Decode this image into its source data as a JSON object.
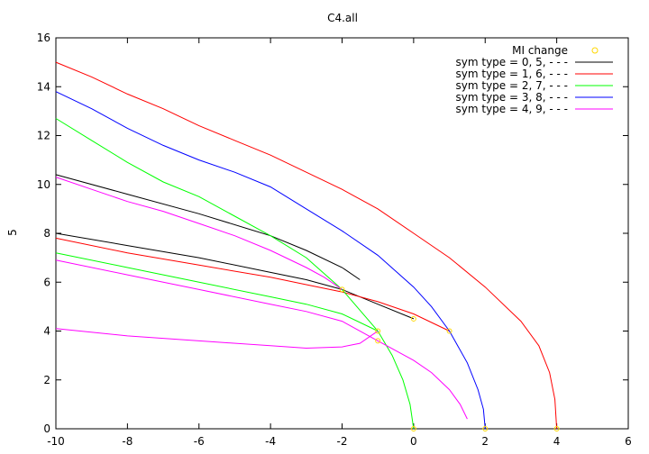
{
  "chart_data": {
    "type": "line",
    "title": "C4.all",
    "xlabel": "",
    "ylabel": "5",
    "xlim": [
      -10,
      6
    ],
    "ylim": [
      0,
      16
    ],
    "x_ticks": [
      -10,
      -8,
      -6,
      -4,
      -2,
      0,
      2,
      4,
      6
    ],
    "y_ticks": [
      0,
      2,
      4,
      6,
      8,
      10,
      12,
      14,
      16
    ],
    "grid": false,
    "legend_position": "top-right",
    "markers": {
      "name": "MI change",
      "color": "#ffd700",
      "points": [
        [
          0,
          0
        ],
        [
          2,
          0
        ],
        [
          4,
          0
        ],
        [
          -2,
          5.7
        ],
        [
          -1,
          4.0
        ],
        [
          0,
          4.5
        ],
        [
          1,
          4.0
        ],
        [
          -1,
          3.6
        ]
      ]
    },
    "series": [
      {
        "name": "sym type = 0, 5, - - -",
        "color": "#000000",
        "lines": [
          [
            [
              -10,
              10.4
            ],
            [
              -8,
              9.6
            ],
            [
              -6,
              8.8
            ],
            [
              -4,
              7.9
            ],
            [
              -3,
              7.3
            ],
            [
              -2,
              6.6
            ],
            [
              -1.5,
              6.1
            ]
          ],
          [
            [
              -10,
              8.0
            ],
            [
              -8,
              7.5
            ],
            [
              -6,
              7.0
            ],
            [
              -4,
              6.4
            ],
            [
              -3,
              6.1
            ],
            [
              -2,
              5.7
            ],
            [
              -1,
              5.1
            ],
            [
              0,
              4.5
            ]
          ]
        ]
      },
      {
        "name": "sym type = 1, 6, - - -",
        "color": "#ff0000",
        "lines": [
          [
            [
              -10,
              15.0
            ],
            [
              -9,
              14.4
            ],
            [
              -8,
              13.7
            ],
            [
              -7,
              13.1
            ],
            [
              -6,
              12.4
            ],
            [
              -5,
              11.8
            ],
            [
              -4,
              11.2
            ],
            [
              -3,
              10.5
            ],
            [
              -2,
              9.8
            ],
            [
              -1,
              9.0
            ],
            [
              0,
              8.0
            ],
            [
              1,
              7.0
            ],
            [
              2,
              5.8
            ],
            [
              3,
              4.4
            ],
            [
              3.5,
              3.4
            ],
            [
              3.8,
              2.3
            ],
            [
              3.95,
              1.2
            ],
            [
              4,
              0
            ]
          ],
          [
            [
              -10,
              7.8
            ],
            [
              -8,
              7.2
            ],
            [
              -6,
              6.7
            ],
            [
              -4,
              6.2
            ],
            [
              -3,
              5.9
            ],
            [
              -2,
              5.6
            ],
            [
              -1,
              5.2
            ],
            [
              0,
              4.7
            ],
            [
              1,
              4.0
            ]
          ]
        ]
      },
      {
        "name": "sym type = 2, 7, - - -",
        "color": "#00ff00",
        "lines": [
          [
            [
              -10,
              12.7
            ],
            [
              -9,
              11.8
            ],
            [
              -8,
              10.9
            ],
            [
              -7,
              10.1
            ],
            [
              -6,
              9.5
            ],
            [
              -5,
              8.7
            ],
            [
              -4,
              7.9
            ],
            [
              -3,
              7.0
            ],
            [
              -2,
              5.7
            ],
            [
              -1,
              4.0
            ],
            [
              -0.6,
              3.0
            ],
            [
              -0.3,
              2.0
            ],
            [
              -0.1,
              1.0
            ],
            [
              0,
              0
            ]
          ],
          [
            [
              -10,
              7.2
            ],
            [
              -8,
              6.6
            ],
            [
              -6,
              6.0
            ],
            [
              -4,
              5.4
            ],
            [
              -3,
              5.1
            ],
            [
              -2,
              4.7
            ],
            [
              -1,
              4.0
            ]
          ]
        ]
      },
      {
        "name": "sym type = 3, 8, - - -",
        "color": "#0000ff",
        "lines": [
          [
            [
              -10,
              13.8
            ],
            [
              -9,
              13.1
            ],
            [
              -8,
              12.3
            ],
            [
              -7,
              11.6
            ],
            [
              -6,
              11.0
            ],
            [
              -5,
              10.5
            ],
            [
              -4,
              9.9
            ],
            [
              -3,
              9.0
            ],
            [
              -2,
              8.1
            ],
            [
              -1,
              7.1
            ],
            [
              0,
              5.8
            ],
            [
              0.5,
              5.0
            ],
            [
              1,
              4.0
            ],
            [
              1.5,
              2.7
            ],
            [
              1.8,
              1.6
            ],
            [
              1.95,
              0.8
            ],
            [
              2,
              0
            ]
          ]
        ]
      },
      {
        "name": "sym type = 4, 9, - - -",
        "color": "#ff00ff",
        "lines": [
          [
            [
              -10,
              10.3
            ],
            [
              -9,
              9.8
            ],
            [
              -8,
              9.3
            ],
            [
              -7,
              8.9
            ],
            [
              -6,
              8.4
            ],
            [
              -5,
              7.9
            ],
            [
              -4,
              7.3
            ],
            [
              -3,
              6.6
            ],
            [
              -2.5,
              6.2
            ],
            [
              -2,
              5.7
            ]
          ],
          [
            [
              -10,
              6.9
            ],
            [
              -8,
              6.3
            ],
            [
              -6,
              5.7
            ],
            [
              -4,
              5.1
            ],
            [
              -3,
              4.8
            ],
            [
              -2,
              4.4
            ],
            [
              -1,
              3.6
            ],
            [
              0,
              2.8
            ],
            [
              0.5,
              2.3
            ],
            [
              1,
              1.6
            ],
            [
              1.3,
              1.0
            ],
            [
              1.5,
              0.4
            ]
          ],
          [
            [
              -10,
              4.1
            ],
            [
              -8,
              3.8
            ],
            [
              -6,
              3.6
            ],
            [
              -4,
              3.4
            ],
            [
              -3,
              3.3
            ],
            [
              -2,
              3.35
            ],
            [
              -1.5,
              3.5
            ],
            [
              -1.1,
              3.9
            ],
            [
              -1,
              4.0
            ]
          ]
        ]
      }
    ]
  }
}
